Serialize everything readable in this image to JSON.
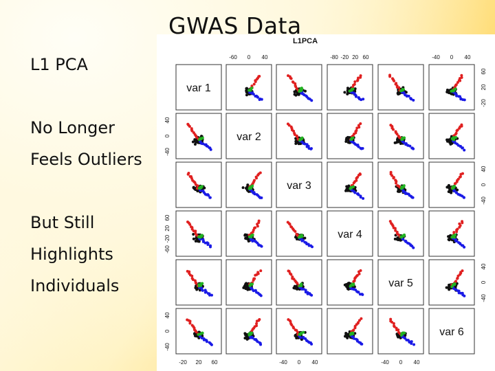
{
  "slide": {
    "title": "GWAS Data",
    "bullets": [
      "L1 PCA",
      "No Longer",
      "Feels Outliers",
      "But Still",
      "Highlights",
      "Individuals"
    ]
  },
  "figure": {
    "title": "L1PCA",
    "variables": [
      "var 1",
      "var 2",
      "var 3",
      "var 4",
      "var 5",
      "var 6"
    ],
    "top_axis_ticks": {
      "col2": [
        "-60",
        "0",
        "40"
      ],
      "col4": [
        "-80",
        "-20",
        "20",
        "60"
      ],
      "col6": [
        "-40",
        "0",
        "40"
      ]
    },
    "bottom_axis_ticks": {
      "col1": [
        "-20",
        "20",
        "60"
      ],
      "col3": [
        "-40",
        "0",
        "40"
      ],
      "col5": [
        "-40",
        "0",
        "40"
      ]
    },
    "left_axis_ticks": {
      "row2": [
        "40",
        "0",
        "-40"
      ],
      "row4": [
        "60",
        "20",
        "-20",
        "-60"
      ],
      "row6": [
        "40",
        "0",
        "-40"
      ]
    },
    "right_axis_ticks": {
      "row1": [
        "60",
        "20",
        "-20"
      ],
      "row3": [
        "40",
        "0",
        "-40"
      ],
      "row5": [
        "40",
        "0",
        "-40"
      ]
    },
    "colors": {
      "black": "#111111",
      "red": "#e02020",
      "blue": "#1a1ae6",
      "green": "#22b322"
    }
  }
}
